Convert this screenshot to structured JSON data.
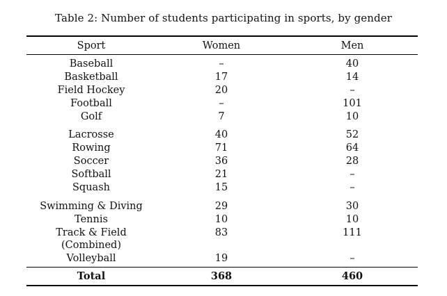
{
  "caption": "Table 2: Number of students participating in sports, by gender",
  "headers": {
    "sport": "Sport",
    "women": "Women",
    "men": "Men"
  },
  "rows": [
    {
      "sport": "Baseball",
      "women": "–",
      "men": "40"
    },
    {
      "sport": "Basketball",
      "women": "17",
      "men": "14"
    },
    {
      "sport": "Field Hockey",
      "women": "20",
      "men": "–"
    },
    {
      "sport": "Football",
      "women": "–",
      "men": "101"
    },
    {
      "sport": "Golf",
      "women": "7",
      "men": "10"
    },
    {
      "sport": "Lacrosse",
      "women": "40",
      "men": "52"
    },
    {
      "sport": "Rowing",
      "women": "71",
      "men": "64"
    },
    {
      "sport": "Soccer",
      "women": "36",
      "men": "28"
    },
    {
      "sport": "Softball",
      "women": "21",
      "men": "–"
    },
    {
      "sport": "Squash",
      "women": "15",
      "men": "–"
    },
    {
      "sport": "Swimming & Diving",
      "women": "29",
      "men": "30"
    },
    {
      "sport": "Tennis",
      "women": "10",
      "men": "10"
    },
    {
      "sport": "Track & Field",
      "sport_line2": "(Combined)",
      "women": "83",
      "men": "111"
    },
    {
      "sport": "Volleyball",
      "women": "19",
      "men": "–"
    }
  ],
  "total": {
    "label": "Total",
    "women": "368",
    "men": "460"
  }
}
